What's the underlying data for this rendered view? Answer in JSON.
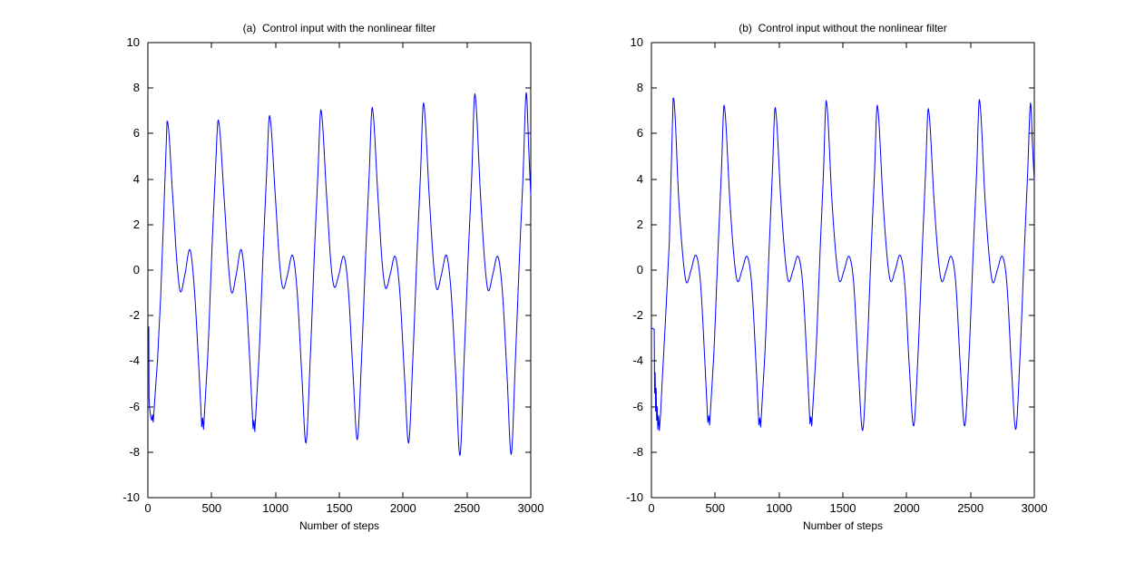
{
  "colors": {
    "background": "#FFFFFF",
    "axis": "#000000",
    "text": "#000000",
    "line": "#0000FF"
  },
  "chart_data": [
    {
      "id": "a",
      "type": "line",
      "title": "(a)  Control input with the nonlinear filter",
      "xlabel": "Number of steps",
      "ylabel": "",
      "xlim": [
        0,
        3000
      ],
      "ylim": [
        -10,
        10
      ],
      "xticks": [
        0,
        500,
        1000,
        1500,
        2000,
        2500,
        3000
      ],
      "yticks": [
        -10,
        -8,
        -6,
        -4,
        -2,
        0,
        2,
        4,
        6,
        8,
        10
      ],
      "grid": false,
      "line_color": "#0000FF",
      "series": {
        "name": "control-input-with-filter",
        "period": 402,
        "first_peak_t": 150,
        "peaks": [
          6.55,
          6.6,
          6.8,
          7.05,
          7.15,
          7.35,
          7.75,
          7.8
        ],
        "troughs": [
          -7.0,
          -7.1,
          -7.6,
          -7.45,
          -7.6,
          -8.15,
          -8.1
        ],
        "local_mins": [
          -0.95,
          -1.0,
          -0.8,
          -0.75,
          -0.8,
          -0.85,
          -0.9
        ],
        "bumps": [
          0.9,
          0.9,
          0.65,
          0.6,
          0.6,
          0.65,
          0.6
        ],
        "cycle_template": [
          [
            45,
            "abs",
            3.2
          ],
          [
            78,
            "abs",
            0.3
          ],
          [
            105,
            "m1",
            0
          ],
          [
            140,
            "abs",
            -0.2
          ],
          [
            180,
            "b",
            0
          ],
          [
            215,
            "abs",
            -0.9
          ],
          [
            252,
            "abs",
            -4.6
          ],
          [
            285,
            "tr",
            0
          ],
          [
            318,
            "abs",
            -3.9
          ],
          [
            352,
            "abs",
            0.9
          ],
          [
            378,
            "abs",
            4.2
          ]
        ],
        "double_dip": {
          "cycles": [
            0,
            1
          ],
          "points": [
            [
              272,
              0.12
            ],
            [
              279,
              0.5
            ],
            [
              286,
              0
            ]
          ]
        },
        "start_points": [
          [
            0,
            -2.45
          ],
          [
            7,
            -2.5
          ],
          [
            9,
            -5.6
          ],
          [
            14,
            -6.1
          ],
          [
            22,
            -6.45
          ],
          [
            30,
            -6.6
          ],
          [
            36,
            -6.35
          ],
          [
            42,
            -6.68
          ],
          [
            55,
            -5.6
          ],
          [
            75,
            -4.0
          ],
          [
            100,
            -1.2
          ],
          [
            125,
            2.6
          ]
        ],
        "end_points": [
          [
            2985,
            5.2
          ],
          [
            3000,
            3.3
          ]
        ]
      }
    },
    {
      "id": "b",
      "type": "line",
      "title": "(b)  Control input without the nonlinear filter",
      "xlabel": "Number of steps",
      "ylabel": "",
      "xlim": [
        0,
        3000
      ],
      "ylim": [
        -10,
        10
      ],
      "xticks": [
        0,
        500,
        1000,
        1500,
        2000,
        2500,
        3000
      ],
      "yticks": [
        -10,
        -8,
        -6,
        -4,
        -2,
        0,
        2,
        4,
        6,
        8,
        10
      ],
      "grid": false,
      "line_color": "#0000FF",
      "series": {
        "name": "control-input-without-filter",
        "period": 400,
        "first_peak_t": 170,
        "peaks": [
          7.55,
          7.25,
          7.15,
          7.45,
          7.25,
          7.1,
          7.5,
          7.35
        ],
        "troughs": [
          -6.8,
          -6.9,
          -6.85,
          -7.05,
          -6.85,
          -6.85,
          -7.0
        ],
        "local_mins": [
          -0.55,
          -0.5,
          -0.5,
          -0.5,
          -0.5,
          -0.5,
          -0.55
        ],
        "bumps": [
          0.65,
          0.6,
          0.6,
          0.6,
          0.65,
          0.6,
          0.6
        ],
        "cycle_template": [
          [
            45,
            "abs",
            3.0
          ],
          [
            78,
            "abs",
            0.5
          ],
          [
            105,
            "m1",
            0
          ],
          [
            140,
            "abs",
            0.0
          ],
          [
            180,
            "b",
            0
          ],
          [
            215,
            "abs",
            -0.6
          ],
          [
            252,
            "abs",
            -4.4
          ],
          [
            285,
            "tr",
            0
          ],
          [
            318,
            "abs",
            -3.8
          ],
          [
            352,
            "abs",
            0.9
          ],
          [
            378,
            "abs",
            4.3
          ]
        ],
        "double_dip": {
          "cycles": [
            0,
            1,
            2
          ],
          "points": [
            [
              272,
              0.1
            ],
            [
              279,
              0.4
            ],
            [
              286,
              0
            ]
          ]
        },
        "start_points": [
          [
            0,
            -2.55
          ],
          [
            22,
            -2.6
          ],
          [
            25,
            -5.4
          ],
          [
            29,
            -4.5
          ],
          [
            33,
            -6.2
          ],
          [
            37,
            -5.2
          ],
          [
            41,
            -6.6
          ],
          [
            45,
            -6.0
          ],
          [
            50,
            -7.0
          ],
          [
            56,
            -6.4
          ],
          [
            62,
            -7.05
          ],
          [
            72,
            -6.3
          ],
          [
            85,
            -4.8
          ],
          [
            110,
            -2.2
          ],
          [
            140,
            1.2
          ]
        ],
        "end_points": [
          [
            2985,
            5.6
          ],
          [
            3000,
            3.9
          ]
        ]
      }
    }
  ]
}
